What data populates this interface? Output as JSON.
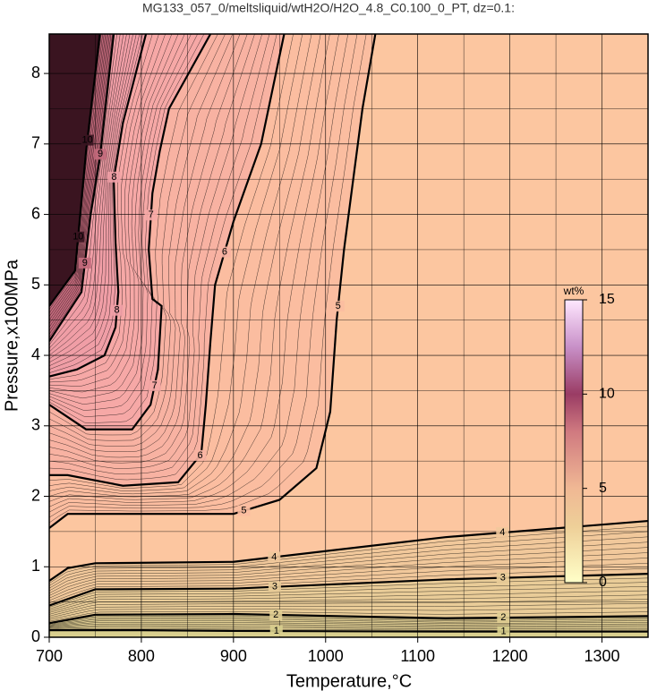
{
  "chart_data": {
    "type": "contour",
    "title": "MG133_057_0/meltsliquid/wtH2O/H2O_4.8_C0.100_0_PT, dz=0.1:",
    "x_label": "Temperature,°C",
    "y_label": "Pressure,x100MPa",
    "xlim": [
      700,
      1350
    ],
    "ylim": [
      0,
      8.56
    ],
    "xticks": [
      700,
      800,
      900,
      1000,
      1100,
      1200,
      1300
    ],
    "yticks": [
      0,
      1,
      2,
      3,
      4,
      5,
      6,
      7,
      8
    ],
    "grid": true,
    "background": "#fcc6a0",
    "series": [
      {
        "name": "1",
        "color": "#d9cf8e",
        "x": [
          700,
          800,
          900,
          1130,
          1350
        ],
        "y": [
          0.1,
          0.1,
          0.09,
          0.08,
          0.08
        ]
      },
      {
        "name": "2",
        "color": "#e2cf94",
        "x": [
          700,
          750,
          900,
          1130,
          1350
        ],
        "y": [
          0.2,
          0.32,
          0.33,
          0.27,
          0.3
        ]
      },
      {
        "name": "3",
        "color": "#e9cc98",
        "x": [
          700,
          750,
          900,
          1130,
          1350
        ],
        "y": [
          0.45,
          0.68,
          0.69,
          0.82,
          0.9
        ]
      },
      {
        "name": "4",
        "color": "#f1c89b",
        "x": [
          700,
          720,
          750,
          900,
          1130,
          1350
        ],
        "y": [
          0.8,
          0.98,
          1.05,
          1.07,
          1.42,
          1.65
        ]
      },
      {
        "name": "5",
        "color": "#fbbda0",
        "x": [
          700,
          720,
          800,
          900,
          950,
          990,
          1005,
          1012,
          1020,
          1040,
          1054
        ],
        "y": [
          1.55,
          1.75,
          1.75,
          1.75,
          1.95,
          2.4,
          3.2,
          4.5,
          5.5,
          7.5,
          8.56
        ]
      },
      {
        "name": "6",
        "color": "#f8b2a2",
        "x": [
          700,
          720,
          780,
          840,
          865,
          870,
          875,
          880,
          900,
          930,
          955
        ],
        "y": [
          2.3,
          2.3,
          2.15,
          2.2,
          2.6,
          3.3,
          4.2,
          5,
          5.9,
          7,
          8.56
        ]
      },
      {
        "name": "7",
        "color": "#f6a8a6",
        "x": [
          700,
          740,
          790,
          810,
          818,
          822,
          812,
          808,
          812,
          820,
          830,
          875
        ],
        "y": [
          3.3,
          2.95,
          2.95,
          3.3,
          3.8,
          4.7,
          4.8,
          5.5,
          6.3,
          6.9,
          7.5,
          8.56
        ]
      },
      {
        "name": "8",
        "color": "#f09ea6",
        "x": [
          700,
          730,
          760,
          772,
          775,
          772,
          770,
          780,
          805
        ],
        "y": [
          3.7,
          3.8,
          4,
          4.4,
          4.9,
          5.6,
          6.5,
          7.3,
          8.56
        ]
      },
      {
        "name": "9",
        "color": "#c46a7c",
        "x": [
          700,
          735,
          745,
          755,
          770
        ],
        "y": [
          4.2,
          4.9,
          6,
          6.8,
          8.56
        ]
      },
      {
        "name": "10",
        "color": "#3a1420",
        "x": [
          700,
          728,
          740,
          755
        ],
        "y": [
          4.7,
          5.2,
          6.9,
          8.56
        ]
      }
    ],
    "colorbar": {
      "label": "wt%",
      "lim": [
        0,
        15
      ],
      "ticks": [
        0,
        5,
        10,
        15
      ],
      "colormap": [
        [
          0,
          "#ffffc8"
        ],
        [
          3,
          "#eecf98"
        ],
        [
          5,
          "#f0b894"
        ],
        [
          8,
          "#d07a80"
        ],
        [
          10,
          "#9a3c64"
        ],
        [
          12.5,
          "#c890c8"
        ],
        [
          15,
          "#ffe8ff"
        ]
      ]
    }
  }
}
